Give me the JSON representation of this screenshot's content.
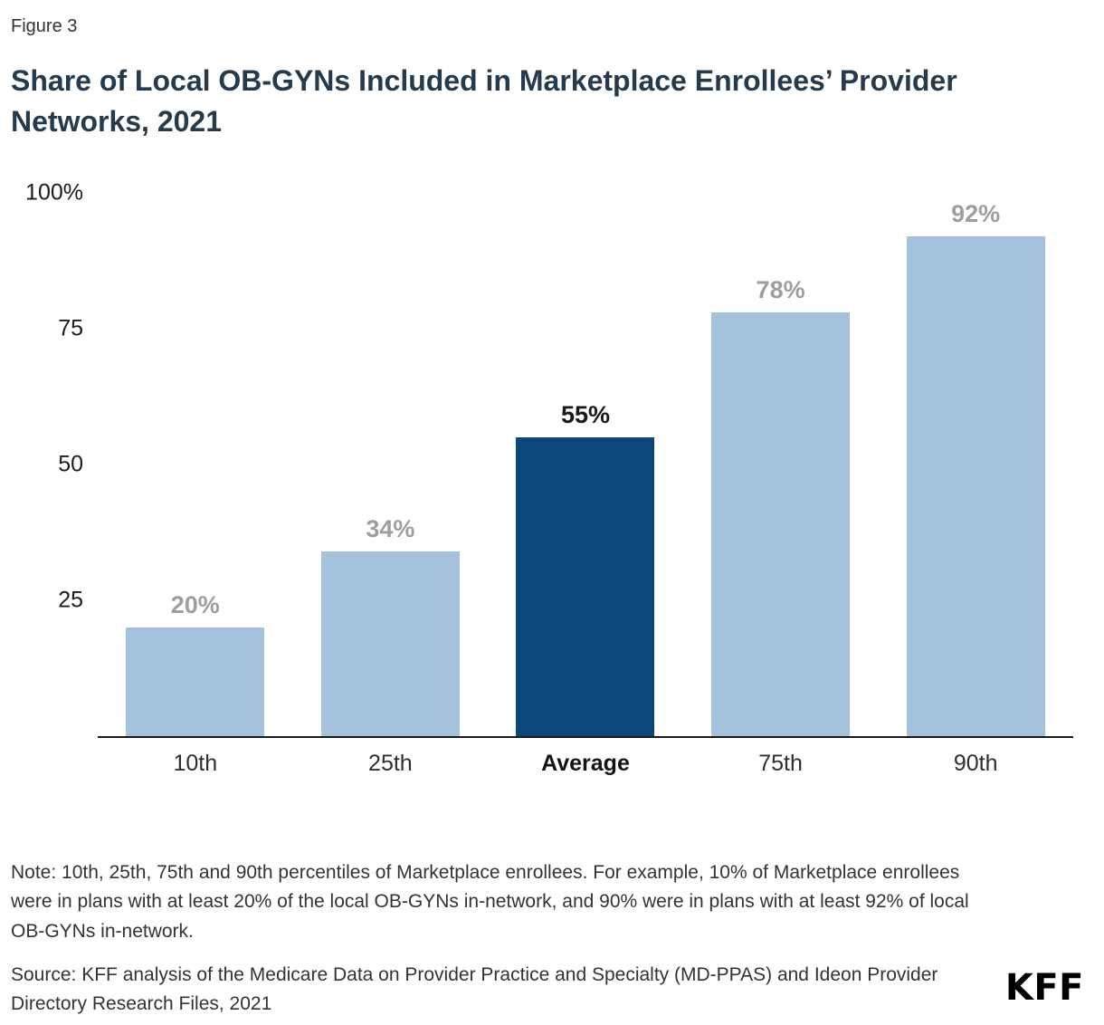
{
  "figure_label": "Figure 3",
  "title": "Share of Local OB-GYNs Included in Marketplace Enrollees’ Provider Networks, 2021",
  "chart_data": {
    "type": "bar",
    "categories": [
      "10th",
      "25th",
      "Average",
      "75th",
      "90th"
    ],
    "values": [
      20,
      34,
      55,
      78,
      92
    ],
    "value_labels": [
      "20%",
      "34%",
      "55%",
      "78%",
      "92%"
    ],
    "highlight_index": 2,
    "ylim": [
      0,
      100
    ],
    "yticks": [
      25,
      50,
      75,
      100
    ],
    "ytick_labels": [
      "25",
      "50",
      "75",
      "100%"
    ],
    "grid": "off",
    "legend": "none",
    "colors": {
      "bar": "#a5c2dc",
      "highlight_bar": "#0b4778",
      "value_label": "#9e9e9e",
      "highlight_value_label": "#191919",
      "axis_line": "#1a1a1a"
    }
  },
  "note": "Note: 10th, 25th, 75th and 90th percentiles of Marketplace enrollees. For example, 10% of Marketplace enrollees were in plans with at least 20% of the local OB-GYNs in-network, and 90% were in plans with at least 92% of local OB-GYNs in-network.",
  "source": "Source: KFF analysis of the Medicare Data on Provider Practice and Specialty (MD-PPAS) and Ideon Provider Directory Research Files, 2021",
  "logo": "KFF"
}
